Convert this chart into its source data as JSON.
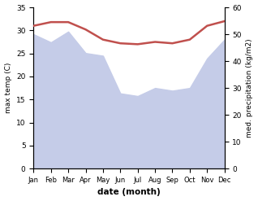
{
  "months": [
    "Jan",
    "Feb",
    "Mar",
    "Apr",
    "May",
    "Jun",
    "Jul",
    "Aug",
    "Sep",
    "Oct",
    "Nov",
    "Dec"
  ],
  "max_temp": [
    31.0,
    31.8,
    31.8,
    30.2,
    28.0,
    27.2,
    27.0,
    27.5,
    27.2,
    28.0,
    31.0,
    32.0
  ],
  "precipitation": [
    50.0,
    47.0,
    51.0,
    43.0,
    42.0,
    28.0,
    27.0,
    30.0,
    29.0,
    30.0,
    41.0,
    48.0
  ],
  "temp_ylim": [
    0,
    35
  ],
  "precip_ylim": [
    0,
    60
  ],
  "temp_yticks": [
    0,
    5,
    10,
    15,
    20,
    25,
    30,
    35
  ],
  "precip_yticks": [
    0,
    10,
    20,
    30,
    40,
    50,
    60
  ],
  "temp_color": "#c0504d",
  "precip_fill_color": "#c5cce8",
  "xlabel": "date (month)",
  "ylabel_left": "max temp (C)",
  "ylabel_right": "med. precipitation (kg/m2)",
  "temp_linewidth": 1.8
}
